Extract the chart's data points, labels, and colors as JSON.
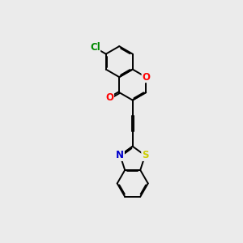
{
  "background_color": "#ebebeb",
  "bond_color": "#000000",
  "line_width": 1.4,
  "atom_colors": {
    "O": "#ff0000",
    "N": "#0000cc",
    "S": "#cccc00",
    "Cl": "#008800"
  },
  "font_size": 8.5,
  "figsize": [
    3.0,
    3.0
  ],
  "dpi": 100
}
